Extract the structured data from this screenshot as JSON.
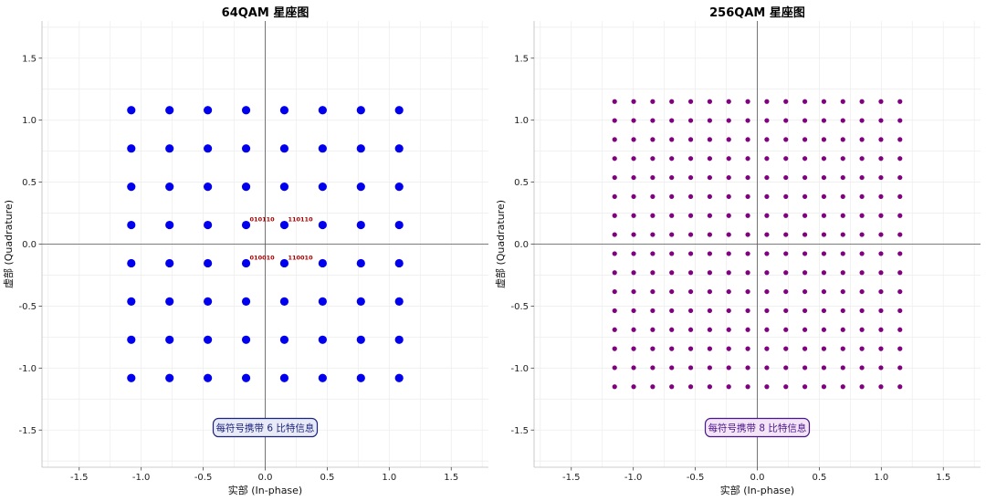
{
  "chart_data": [
    {
      "type": "scatter",
      "title": "64QAM 星座图",
      "xlabel": "实部 (In-phase)",
      "ylabel": "虚部 (Quadrature)",
      "xlim": [
        -1.8,
        1.8
      ],
      "ylim": [
        -1.8,
        1.8
      ],
      "xticks": [
        -1.5,
        -1.0,
        -0.5,
        0.0,
        0.5,
        1.0,
        1.5
      ],
      "yticks": [
        -1.5,
        -1.0,
        -0.5,
        0.0,
        0.5,
        1.0,
        1.5
      ],
      "tick_labels": [
        "-1.5",
        "-1.0",
        "-0.5",
        "0.0",
        "0.5",
        "1.0",
        "1.5"
      ],
      "grid": true,
      "color": "#0000ee",
      "levels": [
        -1.0801,
        -0.7715,
        -0.4629,
        -0.1543,
        0.1543,
        0.4629,
        0.7715,
        1.0801
      ],
      "point_count": 64,
      "annotations": [
        {
          "text": "010110",
          "x": -0.1543,
          "y": 0.1543
        },
        {
          "text": "110110",
          "x": 0.1543,
          "y": 0.1543
        },
        {
          "text": "010010",
          "x": -0.1543,
          "y": -0.1543
        },
        {
          "text": "110010",
          "x": 0.1543,
          "y": -0.1543
        }
      ],
      "annotation_color": "#aa0000",
      "info_box": {
        "text": "每符号携带 6 比特信息",
        "border": "#1a237e",
        "fill": "#e8eaf6",
        "text_color": "#1a237e"
      }
    },
    {
      "type": "scatter",
      "title": "256QAM 星座图",
      "xlabel": "实部 (In-phase)",
      "ylabel": "虚部 (Quadrature)",
      "xlim": [
        -1.8,
        1.8
      ],
      "ylim": [
        -1.8,
        1.8
      ],
      "xticks": [
        -1.5,
        -1.0,
        -0.5,
        0.0,
        0.5,
        1.0,
        1.5
      ],
      "yticks": [
        -1.5,
        -1.0,
        -0.5,
        0.0,
        0.5,
        1.0,
        1.5
      ],
      "tick_labels": [
        "-1.5",
        "-1.0",
        "-0.5",
        "0.0",
        "0.5",
        "1.0",
        "1.5"
      ],
      "grid": true,
      "color": "#800080",
      "levels": [
        -1.1504,
        -0.9971,
        -0.8437,
        -0.6904,
        -0.5369,
        -0.3835,
        -0.2301,
        -0.0767,
        0.0767,
        0.2301,
        0.3835,
        0.5369,
        0.6904,
        0.8437,
        0.9971,
        1.1504
      ],
      "point_count": 256,
      "annotations": [],
      "info_box": {
        "text": "每符号携带 8 比特信息",
        "border": "#4a148c",
        "fill": "#f3e5f5",
        "text_color": "#4a148c"
      }
    }
  ]
}
